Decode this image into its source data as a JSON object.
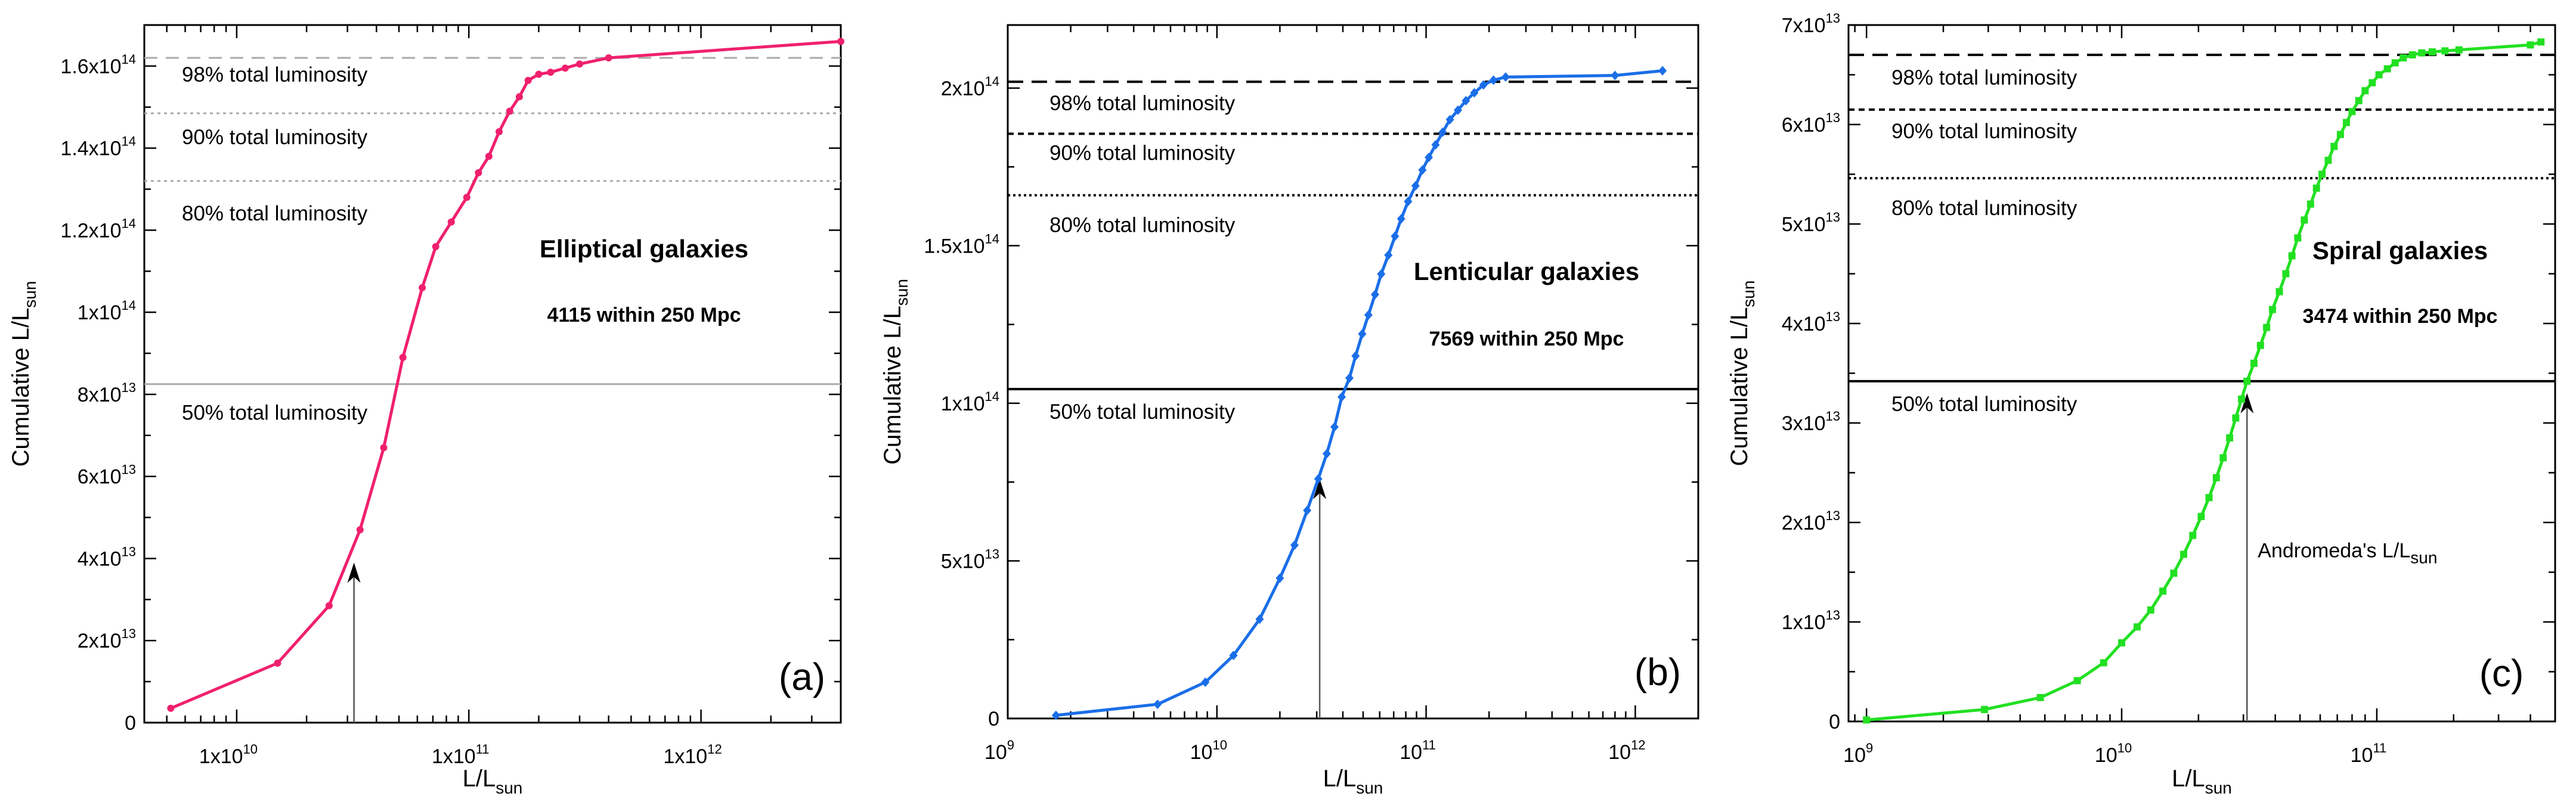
{
  "chart_data": [
    {
      "type": "line",
      "panel": "(a)",
      "title": "Elliptical galaxies",
      "subtitle": "4115 within 250 Mpc",
      "xlabel": "L/L",
      "xlabel_sub": "sun",
      "ylabel": "Cumulative L/L",
      "ylabel_sub": "sun",
      "xscale": "log",
      "xlim": [
        4000000000.0,
        4000000000000.0
      ],
      "ylim": [
        0,
        170000000000000.0
      ],
      "color": "#f0206e",
      "marker": "circle",
      "x_ticks": [
        {
          "v": 10000000000.0,
          "m": "1x10",
          "e": "10"
        },
        {
          "v": 100000000000.0,
          "m": "1x10",
          "e": "11"
        },
        {
          "v": 1000000000000.0,
          "m": "1x10",
          "e": "12"
        }
      ],
      "y_ticks": [
        {
          "v": 0,
          "m": "0",
          "e": ""
        },
        {
          "v": 20000000000000.0,
          "m": "2x10",
          "e": "13"
        },
        {
          "v": 40000000000000.0,
          "m": "4x10",
          "e": "13"
        },
        {
          "v": 60000000000000.0,
          "m": "6x10",
          "e": "13"
        },
        {
          "v": 80000000000000.0,
          "m": "8x10",
          "e": "13"
        },
        {
          "v": 100000000000000.0,
          "m": "1x10",
          "e": "14"
        },
        {
          "v": 120000000000000.0,
          "m": "1.2x10",
          "e": "14"
        },
        {
          "v": 140000000000000.0,
          "m": "1.4x10",
          "e": "14"
        },
        {
          "v": 160000000000000.0,
          "m": "1.6x10",
          "e": "14"
        }
      ],
      "ref_lines": [
        {
          "y": 162000000000000.0,
          "label": "98% total luminosity",
          "style": "dash-gray"
        },
        {
          "y": 148500000000000.0,
          "label": "90% total luminosity",
          "style": "dot-gray"
        },
        {
          "y": 132000000000000.0,
          "label": "80% total luminosity",
          "style": "dot-gray"
        },
        {
          "y": 82500000000000.0,
          "label": "50% total luminosity",
          "style": "solid-gray"
        }
      ],
      "arrow_x": 32000000000.0,
      "arrow_y": 39000000000000.0,
      "series": [
        {
          "name": "Elliptical",
          "x": [
            5200000000.0,
            15000000000.0,
            25000000000.0,
            34000000000.0,
            43000000000.0,
            52000000000.0,
            63000000000.0,
            72000000000.0,
            84000000000.0,
            98000000000.0,
            110000000000.0,
            122000000000.0,
            135000000000.0,
            150000000000.0,
            165000000000.0,
            180000000000.0,
            200000000000.0,
            225000000000.0,
            260000000000.0,
            300000000000.0,
            400000000000.0,
            4000000000000.0
          ],
          "y": [
            3500000000000.0,
            14500000000000.0,
            28500000000000.0,
            47000000000000.0,
            67000000000000.0,
            89000000000000.0,
            106000000000000.0,
            116000000000000.0,
            122000000000000.0,
            128000000000000.0,
            134000000000000.0,
            138000000000000.0,
            144000000000000.0,
            149000000000000.0,
            152500000000000.0,
            156500000000000.0,
            158000000000000.0,
            158500000000000.0,
            159500000000000.0,
            160500000000000.0,
            162000000000000.0,
            166000000000000.0
          ]
        }
      ]
    },
    {
      "type": "line",
      "panel": "(b)",
      "title": "Lenticular galaxies",
      "subtitle": "7569 within 250 Mpc",
      "xlabel": "L/L",
      "xlabel_sub": "sun",
      "ylabel": "Cumulative L/L",
      "ylabel_sub": "sun",
      "xscale": "log",
      "xlim": [
        1000000000.0,
        2000000000000.0
      ],
      "ylim": [
        0,
        220000000000000.0
      ],
      "color": "#1a6ee8",
      "marker": "diamond",
      "x_ticks": [
        {
          "v": 1000000000.0,
          "m": "10",
          "e": "9"
        },
        {
          "v": 10000000000.0,
          "m": "10",
          "e": "10"
        },
        {
          "v": 100000000000.0,
          "m": "10",
          "e": "11"
        },
        {
          "v": 1000000000000.0,
          "m": "10",
          "e": "12"
        }
      ],
      "y_ticks": [
        {
          "v": 0,
          "m": "0",
          "e": ""
        },
        {
          "v": 50000000000000.0,
          "m": "5x10",
          "e": "13"
        },
        {
          "v": 100000000000000.0,
          "m": "1x10",
          "e": "14"
        },
        {
          "v": 150000000000000.0,
          "m": "1.5x10",
          "e": "14"
        },
        {
          "v": 200000000000000.0,
          "m": "2x10",
          "e": "14"
        }
      ],
      "ref_lines": [
        {
          "y": 202000000000000.0,
          "label": "98% total luminosity",
          "style": "dash-black"
        },
        {
          "y": 185500000000000.0,
          "label": "90% total luminosity",
          "style": "shortdash-black"
        },
        {
          "y": 166000000000000.0,
          "label": "80% total luminosity",
          "style": "dot-black"
        },
        {
          "y": 104500000000000.0,
          "label": "50% total luminosity",
          "style": "solid-black"
        }
      ],
      "arrow_x": 31000000000.0,
      "arrow_y": 76000000000000.0,
      "series": [
        {
          "name": "Lenticular",
          "x": [
            1700000000.0,
            5200000000.0,
            8800000000.0,
            12000000000.0,
            16000000000.0,
            20000000000.0,
            23500000000.0,
            27000000000.0,
            30500000000.0,
            33500000000.0,
            36500000000.0,
            39500000000.0,
            43000000000.0,
            46000000000.0,
            49500000000.0,
            53000000000.0,
            57000000000.0,
            61000000000.0,
            66000000000.0,
            71000000000.0,
            76000000000.0,
            82000000000.0,
            89000000000.0,
            96000000000.0,
            103000000000.0,
            111000000000.0,
            120000000000.0,
            130000000000.0,
            142000000000.0,
            155000000000.0,
            170000000000.0,
            188000000000.0,
            210000000000.0,
            240000000000.0,
            800000000000.0,
            1350000000000.0
          ],
          "y": [
            1000000000000.0,
            4500000000000.0,
            11500000000000.0,
            20000000000000.0,
            31500000000000.0,
            44500000000000.0,
            55000000000000.0,
            66000000000000.0,
            76000000000000.0,
            84000000000000.0,
            92500000000000.0,
            102000000000000.0,
            108000000000000.0,
            115000000000000.0,
            122000000000000.0,
            128000000000000.0,
            134500000000000.0,
            141000000000000.0,
            147000000000000.0,
            153000000000000.0,
            158500000000000.0,
            164000000000000.0,
            169000000000000.0,
            174000000000000.0,
            178000000000000.0,
            182000000000000.0,
            186000000000000.0,
            190000000000000.0,
            193000000000000.0,
            196000000000000.0,
            198500000000000.0,
            201000000000000.0,
            202500000000000.0,
            203500000000000.0,
            204000000000000.0,
            205500000000000.0
          ]
        }
      ]
    },
    {
      "type": "line",
      "panel": "(c)",
      "title": "Spiral galaxies",
      "subtitle": "3474 within 250 Mpc",
      "xlabel": "L/L",
      "xlabel_sub": "sun",
      "ylabel": "Cumulative L/L",
      "ylabel_sub": "sun",
      "xscale": "log",
      "xlim": [
        850000000.0,
        500000000000.0
      ],
      "ylim": [
        0,
        70000000000000.0
      ],
      "color": "#22e022",
      "marker": "square",
      "annotation": "Andromeda's L/L",
      "annotation_sub": "sun",
      "x_ticks": [
        {
          "v": 1000000000.0,
          "m": "10",
          "e": "9"
        },
        {
          "v": 10000000000.0,
          "m": "10",
          "e": "10"
        },
        {
          "v": 100000000000.0,
          "m": "10",
          "e": "11"
        }
      ],
      "y_ticks": [
        {
          "v": 0,
          "m": "0",
          "e": ""
        },
        {
          "v": 10000000000000.0,
          "m": "1x10",
          "e": "13"
        },
        {
          "v": 20000000000000.0,
          "m": "2x10",
          "e": "13"
        },
        {
          "v": 30000000000000.0,
          "m": "3x10",
          "e": "13"
        },
        {
          "v": 40000000000000.0,
          "m": "4x10",
          "e": "13"
        },
        {
          "v": 50000000000000.0,
          "m": "5x10",
          "e": "13"
        },
        {
          "v": 60000000000000.0,
          "m": "6x10",
          "e": "13"
        },
        {
          "v": 70000000000000.0,
          "m": "7x10",
          "e": "13"
        }
      ],
      "ref_lines": [
        {
          "y": 67000000000000.0,
          "label": "98% total luminosity",
          "style": "dash-black"
        },
        {
          "y": 61500000000000.0,
          "label": "90% total luminosity",
          "style": "shortdash-black"
        },
        {
          "y": 54600000000000.0,
          "label": "80% total luminosity",
          "style": "dot-black"
        },
        {
          "y": 34200000000000.0,
          "label": "50% total luminosity",
          "style": "solid-black"
        }
      ],
      "arrow_x": 31000000000.0,
      "arrow_y": 33000000000000.0,
      "series": [
        {
          "name": "Spiral",
          "x": [
            1000000000.0,
            2900000000.0,
            4800000000.0,
            6700000000.0,
            8500000000.0,
            10000000000.0,
            11500000000.0,
            13000000000.0,
            14500000000.0,
            16000000000.0,
            17500000000.0,
            19000000000.0,
            20500000000.0,
            22000000000.0,
            23500000000.0,
            25000000000.0,
            26500000000.0,
            28000000000.0,
            29500000000.0,
            31000000000.0,
            33000000000.0,
            35000000000.0,
            37000000000.0,
            39000000000.0,
            41500000000.0,
            44000000000.0,
            46500000000.0,
            49000000000.0,
            52000000000.0,
            55000000000.0,
            58000000000.0,
            61000000000.0,
            64500000000.0,
            68000000000.0,
            72000000000.0,
            76000000000.0,
            80000000000.0,
            85000000000.0,
            90000000000.0,
            96000000000.0,
            102000000000.0,
            110000000000.0,
            118000000000.0,
            127000000000.0,
            138000000000.0,
            150000000000.0,
            165000000000.0,
            185000000000.0,
            210000000000.0,
            400000000000.0,
            440000000000.0
          ],
          "y": [
            150000000000.0,
            1200000000000.0,
            2400000000000.0,
            4100000000000.0,
            5900000000000.0,
            7900000000000.0,
            9500000000000.0,
            11200000000000.0,
            13100000000000.0,
            14900000000000.0,
            16800000000000.0,
            18700000000000.0,
            20600000000000.0,
            22500000000000.0,
            24500000000000.0,
            26500000000000.0,
            28500000000000.0,
            30500000000000.0,
            32400000000000.0,
            34200000000000.0,
            36000000000000.0,
            37800000000000.0,
            39600000000000.0,
            41400000000000.0,
            43200000000000.0,
            45000000000000.0,
            46800000000000.0,
            48600000000000.0,
            50400000000000.0,
            52000000000000.0,
            53600000000000.0,
            55000000000000.0,
            56400000000000.0,
            57800000000000.0,
            59000000000000.0,
            60200000000000.0,
            61300000000000.0,
            62400000000000.0,
            63400000000000.0,
            64200000000000.0,
            65000000000000.0,
            65600000000000.0,
            66200000000000.0,
            66700000000000.0,
            67000000000000.0,
            67200000000000.0,
            67300000000000.0,
            67400000000000.0,
            67500000000000.0,
            68000000000000.0,
            68300000000000.0
          ]
        }
      ]
    }
  ]
}
